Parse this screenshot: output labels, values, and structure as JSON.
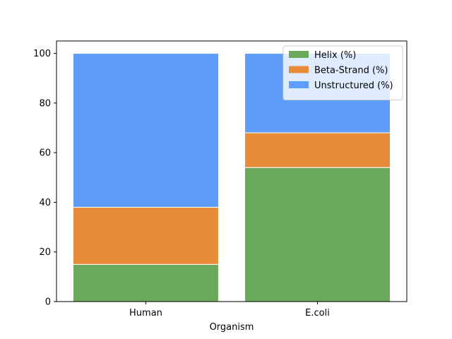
{
  "chart_data": {
    "type": "bar",
    "stacked": true,
    "categories": [
      "Human",
      "E.coli"
    ],
    "series": [
      {
        "name": "Helix (%)",
        "values": [
          15,
          54
        ],
        "color": "#6aaa5a"
      },
      {
        "name": "Beta-Strand (%)",
        "values": [
          23,
          14
        ],
        "color": "#e88c3a"
      },
      {
        "name": "Unstructured (%)",
        "values": [
          62,
          32
        ],
        "color": "#5e9dfa"
      }
    ],
    "xlabel": "Organism",
    "ylabel": "",
    "ylim": [
      0,
      105
    ],
    "yticks": [
      0,
      20,
      40,
      60,
      80,
      100
    ],
    "grid": false,
    "legend": "top-right"
  }
}
